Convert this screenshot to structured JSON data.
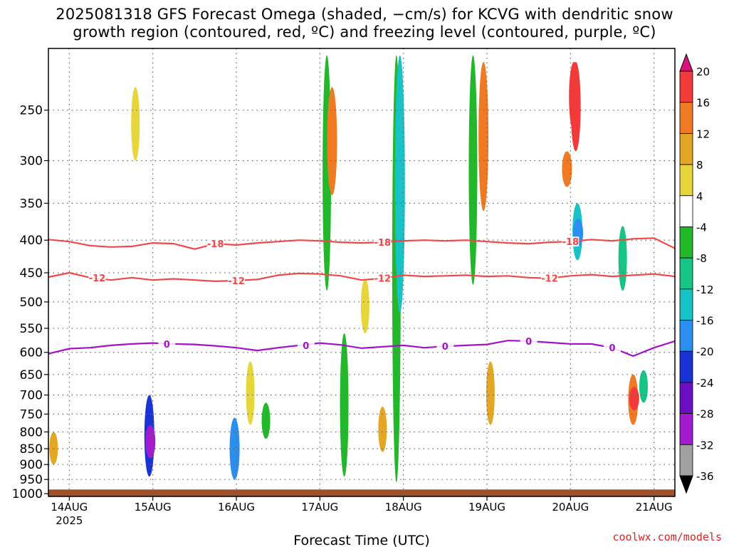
{
  "title_line1": "2025081318 GFS Forecast Omega (shaded, −cm/s) for KCVG with dendritic snow",
  "title_line2": "growth region (contoured, red, ºC) and freezing level (contoured, purple, ºC)",
  "credit": "coolwx.com/models",
  "credit_color": "#dd2222",
  "chart_data": {
    "type": "heatmap",
    "title": "2025081318 GFS Forecast Omega (shaded, −cm/s) for KCVG with dendritic snow growth region (contoured, red, ºC) and freezing level (contoured, purple, ºC)",
    "xlabel": "Forecast Time (UTC)",
    "ylabel": "",
    "x_ticks": [
      {
        "label": "14AUG",
        "sub": "2025",
        "hours": 6
      },
      {
        "label": "15AUG",
        "sub": "",
        "hours": 30
      },
      {
        "label": "16AUG",
        "sub": "",
        "hours": 54
      },
      {
        "label": "17AUG",
        "sub": "",
        "hours": 78
      },
      {
        "label": "18AUG",
        "sub": "",
        "hours": 102
      },
      {
        "label": "19AUG",
        "sub": "",
        "hours": 126
      },
      {
        "label": "20AUG",
        "sub": "",
        "hours": 150
      },
      {
        "label": "21AUG",
        "sub": "",
        "hours": 174
      }
    ],
    "x_range_hours": [
      0,
      180
    ],
    "y_ticks": [
      250,
      300,
      350,
      400,
      450,
      500,
      550,
      600,
      650,
      700,
      750,
      800,
      850,
      900,
      950,
      1000
    ],
    "y_range_hPa": [
      200,
      1010
    ],
    "y_scale": "log-pressure",
    "surface_ground_hPa": 985,
    "grid": true,
    "colorbar": {
      "labels": [
        "20",
        "16",
        "12",
        "8",
        "4",
        "-4",
        "-8",
        "-12",
        "-16",
        "-20",
        "-24",
        "-28",
        "-32",
        "-36"
      ],
      "colors": [
        "#d9117c",
        "#f23a3a",
        "#f07a23",
        "#e3a725",
        "#e6d63b",
        "#ffffff",
        "#22b82a",
        "#16c483",
        "#18c3c8",
        "#2a8fee",
        "#1a33d4",
        "#6a0fc2",
        "#a31ad0",
        "#a0a0a0",
        "#000000"
      ]
    },
    "contours": [
      {
        "label": "-18",
        "color": "#f04848",
        "points": [
          [
            0,
            399
          ],
          [
            6,
            402
          ],
          [
            12,
            408
          ],
          [
            18,
            410
          ],
          [
            24,
            409
          ],
          [
            30,
            404
          ],
          [
            36,
            405
          ],
          [
            42,
            413
          ],
          [
            48,
            405
          ],
          [
            54,
            407
          ],
          [
            60,
            404
          ],
          [
            66,
            402
          ],
          [
            72,
            400
          ],
          [
            78,
            401
          ],
          [
            84,
            403
          ],
          [
            90,
            404
          ],
          [
            96,
            403
          ],
          [
            102,
            401
          ],
          [
            108,
            400
          ],
          [
            114,
            401
          ],
          [
            120,
            400
          ],
          [
            126,
            402
          ],
          [
            132,
            404
          ],
          [
            138,
            405
          ],
          [
            144,
            403
          ],
          [
            150,
            402
          ],
          [
            156,
            399
          ],
          [
            162,
            401
          ],
          [
            168,
            398
          ],
          [
            174,
            397
          ],
          [
            180,
            412
          ]
        ]
      },
      {
        "label": "-12",
        "color": "#f04848",
        "points": [
          [
            0,
            457
          ],
          [
            6,
            450
          ],
          [
            12,
            458
          ],
          [
            18,
            462
          ],
          [
            24,
            458
          ],
          [
            30,
            462
          ],
          [
            36,
            460
          ],
          [
            42,
            462
          ],
          [
            48,
            464
          ],
          [
            54,
            463
          ],
          [
            60,
            461
          ],
          [
            66,
            454
          ],
          [
            72,
            451
          ],
          [
            78,
            452
          ],
          [
            84,
            455
          ],
          [
            90,
            462
          ],
          [
            96,
            459
          ],
          [
            102,
            454
          ],
          [
            108,
            456
          ],
          [
            114,
            455
          ],
          [
            120,
            454
          ],
          [
            126,
            456
          ],
          [
            132,
            455
          ],
          [
            138,
            458
          ],
          [
            144,
            459
          ],
          [
            150,
            455
          ],
          [
            156,
            453
          ],
          [
            162,
            456
          ],
          [
            168,
            454
          ],
          [
            174,
            452
          ],
          [
            180,
            456
          ]
        ]
      },
      {
        "label": "0",
        "color": "#a212c9",
        "points": [
          [
            0,
            603
          ],
          [
            6,
            592
          ],
          [
            12,
            590
          ],
          [
            18,
            585
          ],
          [
            24,
            582
          ],
          [
            30,
            580
          ],
          [
            36,
            582
          ],
          [
            42,
            583
          ],
          [
            48,
            586
          ],
          [
            54,
            590
          ],
          [
            60,
            596
          ],
          [
            66,
            590
          ],
          [
            72,
            585
          ],
          [
            78,
            580
          ],
          [
            84,
            584
          ],
          [
            90,
            591
          ],
          [
            96,
            588
          ],
          [
            102,
            585
          ],
          [
            108,
            590
          ],
          [
            114,
            587
          ],
          [
            120,
            585
          ],
          [
            126,
            583
          ],
          [
            132,
            575
          ],
          [
            138,
            576
          ],
          [
            144,
            579
          ],
          [
            150,
            582
          ],
          [
            156,
            582
          ],
          [
            162,
            590
          ],
          [
            168,
            608
          ],
          [
            174,
            590
          ],
          [
            180,
            576
          ]
        ]
      }
    ],
    "omega_features": [
      {
        "t": 1.5,
        "p": [
          800,
          900
        ],
        "value": 8
      },
      {
        "t": 25,
        "p": [
          230,
          300
        ],
        "value": 6
      },
      {
        "t": 29,
        "p": [
          700,
          940
        ],
        "value": -20
      },
      {
        "t": 29.3,
        "p": [
          780,
          880
        ],
        "value": -28
      },
      {
        "t": 53.5,
        "p": [
          760,
          950
        ],
        "value": -16
      },
      {
        "t": 58,
        "p": [
          620,
          780
        ],
        "value": 6
      },
      {
        "t": 62.5,
        "p": [
          720,
          820
        ],
        "value": -6
      },
      {
        "t": 80,
        "p": [
          205,
          480
        ],
        "value": -6
      },
      {
        "t": 81.5,
        "p": [
          230,
          340
        ],
        "value": 14
      },
      {
        "t": 85,
        "p": [
          560,
          940
        ],
        "value": -6
      },
      {
        "t": 91,
        "p": [
          460,
          560
        ],
        "value": 6
      },
      {
        "t": 100,
        "p": [
          205,
          960
        ],
        "value": -6
      },
      {
        "t": 101,
        "p": [
          205,
          520
        ],
        "value": -12
      },
      {
        "t": 96,
        "p": [
          730,
          860
        ],
        "value": 10
      },
      {
        "t": 122,
        "p": [
          205,
          470
        ],
        "value": -6
      },
      {
        "t": 125,
        "p": [
          210,
          360
        ],
        "value": 12
      },
      {
        "t": 127,
        "p": [
          620,
          780
        ],
        "value": 10
      },
      {
        "t": 151,
        "p": [
          210,
          270
        ],
        "value": 16
      },
      {
        "t": 151.5,
        "p": [
          210,
          290
        ],
        "value": 18
      },
      {
        "t": 149,
        "p": [
          290,
          330
        ],
        "value": 14
      },
      {
        "t": 152,
        "p": [
          350,
          430
        ],
        "value": -12
      },
      {
        "t": 152.2,
        "p": [
          370,
          410
        ],
        "value": -18
      },
      {
        "t": 165,
        "p": [
          380,
          480
        ],
        "value": -8
      },
      {
        "t": 168,
        "p": [
          650,
          780
        ],
        "value": 14
      },
      {
        "t": 168.3,
        "p": [
          680,
          740
        ],
        "value": 18
      },
      {
        "t": 171,
        "p": [
          640,
          720
        ],
        "value": -10
      }
    ]
  }
}
